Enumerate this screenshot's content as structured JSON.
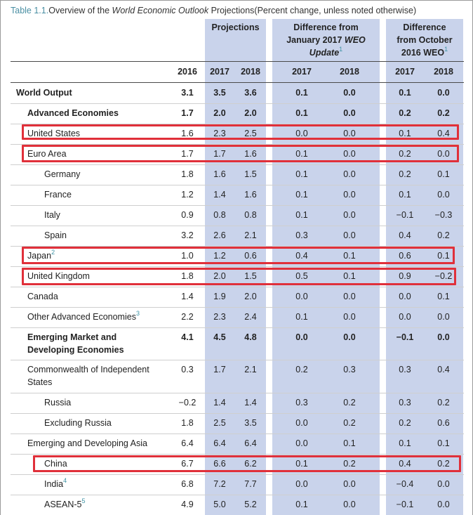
{
  "caption": {
    "label": "Table 1.1.",
    "text_before": "Overview of the ",
    "text_italic": "World Economic Outlook",
    "text_after": " Projections(Percent change, unless noted otherwise)"
  },
  "headers": {
    "projections": "Projections",
    "jan_line1": "Difference from",
    "jan_line2_plain": "January 2017 ",
    "jan_line2_italic": "WEO",
    "jan_line3_italic": "Update",
    "jan_note": "1",
    "oct_line1": "Difference",
    "oct_line2": "from October",
    "oct_line3": "2016 WEO",
    "oct_note": "1"
  },
  "years": [
    "2016",
    "2017",
    "2018",
    "2017",
    "2018",
    "2017",
    "2018"
  ],
  "rows": [
    {
      "name": "World Output",
      "note": "",
      "values": [
        "3.1",
        "3.5",
        "3.6",
        "0.1",
        "0.0",
        "0.1",
        "0.0"
      ]
    },
    {
      "name": "Advanced Economies",
      "note": "",
      "values": [
        "1.7",
        "2.0",
        "2.0",
        "0.1",
        "0.0",
        "0.2",
        "0.2"
      ]
    },
    {
      "name": "United States",
      "note": "",
      "values": [
        "1.6",
        "2.3",
        "2.5",
        "0.0",
        "0.0",
        "0.1",
        "0.4"
      ]
    },
    {
      "name": "Euro Area",
      "note": "",
      "values": [
        "1.7",
        "1.7",
        "1.6",
        "0.1",
        "0.0",
        "0.2",
        "0.0"
      ]
    },
    {
      "name": "Germany",
      "note": "",
      "values": [
        "1.8",
        "1.6",
        "1.5",
        "0.1",
        "0.0",
        "0.2",
        "0.1"
      ]
    },
    {
      "name": "France",
      "note": "",
      "values": [
        "1.2",
        "1.4",
        "1.6",
        "0.1",
        "0.0",
        "0.1",
        "0.0"
      ]
    },
    {
      "name": "Italy",
      "note": "",
      "values": [
        "0.9",
        "0.8",
        "0.8",
        "0.1",
        "0.0",
        "−0.1",
        "−0.3"
      ]
    },
    {
      "name": "Spain",
      "note": "",
      "values": [
        "3.2",
        "2.6",
        "2.1",
        "0.3",
        "0.0",
        "0.4",
        "0.2"
      ]
    },
    {
      "name": "Japan",
      "note": "2",
      "values": [
        "1.0",
        "1.2",
        "0.6",
        "0.4",
        "0.1",
        "0.6",
        "0.1"
      ]
    },
    {
      "name": "United Kingdom",
      "note": "",
      "values": [
        "1.8",
        "2.0",
        "1.5",
        "0.5",
        "0.1",
        "0.9",
        "−0.2"
      ]
    },
    {
      "name": "Canada",
      "note": "",
      "values": [
        "1.4",
        "1.9",
        "2.0",
        "0.0",
        "0.0",
        "0.0",
        "0.1"
      ]
    },
    {
      "name": "Other Advanced Economies",
      "note": "3",
      "values": [
        "2.2",
        "2.3",
        "2.4",
        "0.1",
        "0.0",
        "0.0",
        "0.0"
      ]
    },
    {
      "name": "Emerging Market and",
      "name2": "Developing Economies",
      "note": "",
      "values": [
        "4.1",
        "4.5",
        "4.8",
        "0.0",
        "0.0",
        "−0.1",
        "0.0"
      ]
    },
    {
      "name": "Commonwealth of Independent",
      "name2": "States",
      "note": "",
      "values": [
        "0.3",
        "1.7",
        "2.1",
        "0.2",
        "0.3",
        "0.3",
        "0.4"
      ]
    },
    {
      "name": "Russia",
      "note": "",
      "values": [
        "−0.2",
        "1.4",
        "1.4",
        "0.3",
        "0.2",
        "0.3",
        "0.2"
      ]
    },
    {
      "name": "Excluding Russia",
      "note": "",
      "values": [
        "1.8",
        "2.5",
        "3.5",
        "0.0",
        "0.2",
        "0.2",
        "0.6"
      ]
    },
    {
      "name": "Emerging and Developing Asia",
      "note": "",
      "values": [
        "6.4",
        "6.4",
        "6.4",
        "0.0",
        "0.1",
        "0.1",
        "0.1"
      ]
    },
    {
      "name": "China",
      "note": "",
      "values": [
        "6.7",
        "6.6",
        "6.2",
        "0.1",
        "0.2",
        "0.4",
        "0.2"
      ]
    },
    {
      "name": "India",
      "note": "4",
      "values": [
        "6.8",
        "7.2",
        "7.7",
        "0.0",
        "0.0",
        "−0.4",
        "0.0"
      ]
    },
    {
      "name": "ASEAN-5",
      "note": "5",
      "values": [
        "4.9",
        "5.0",
        "5.2",
        "0.1",
        "0.0",
        "−0.1",
        "0.0"
      ]
    }
  ],
  "colors": {
    "band": "#c9d3eb",
    "highlight": "#e0303a",
    "note": "#3f93a5"
  }
}
